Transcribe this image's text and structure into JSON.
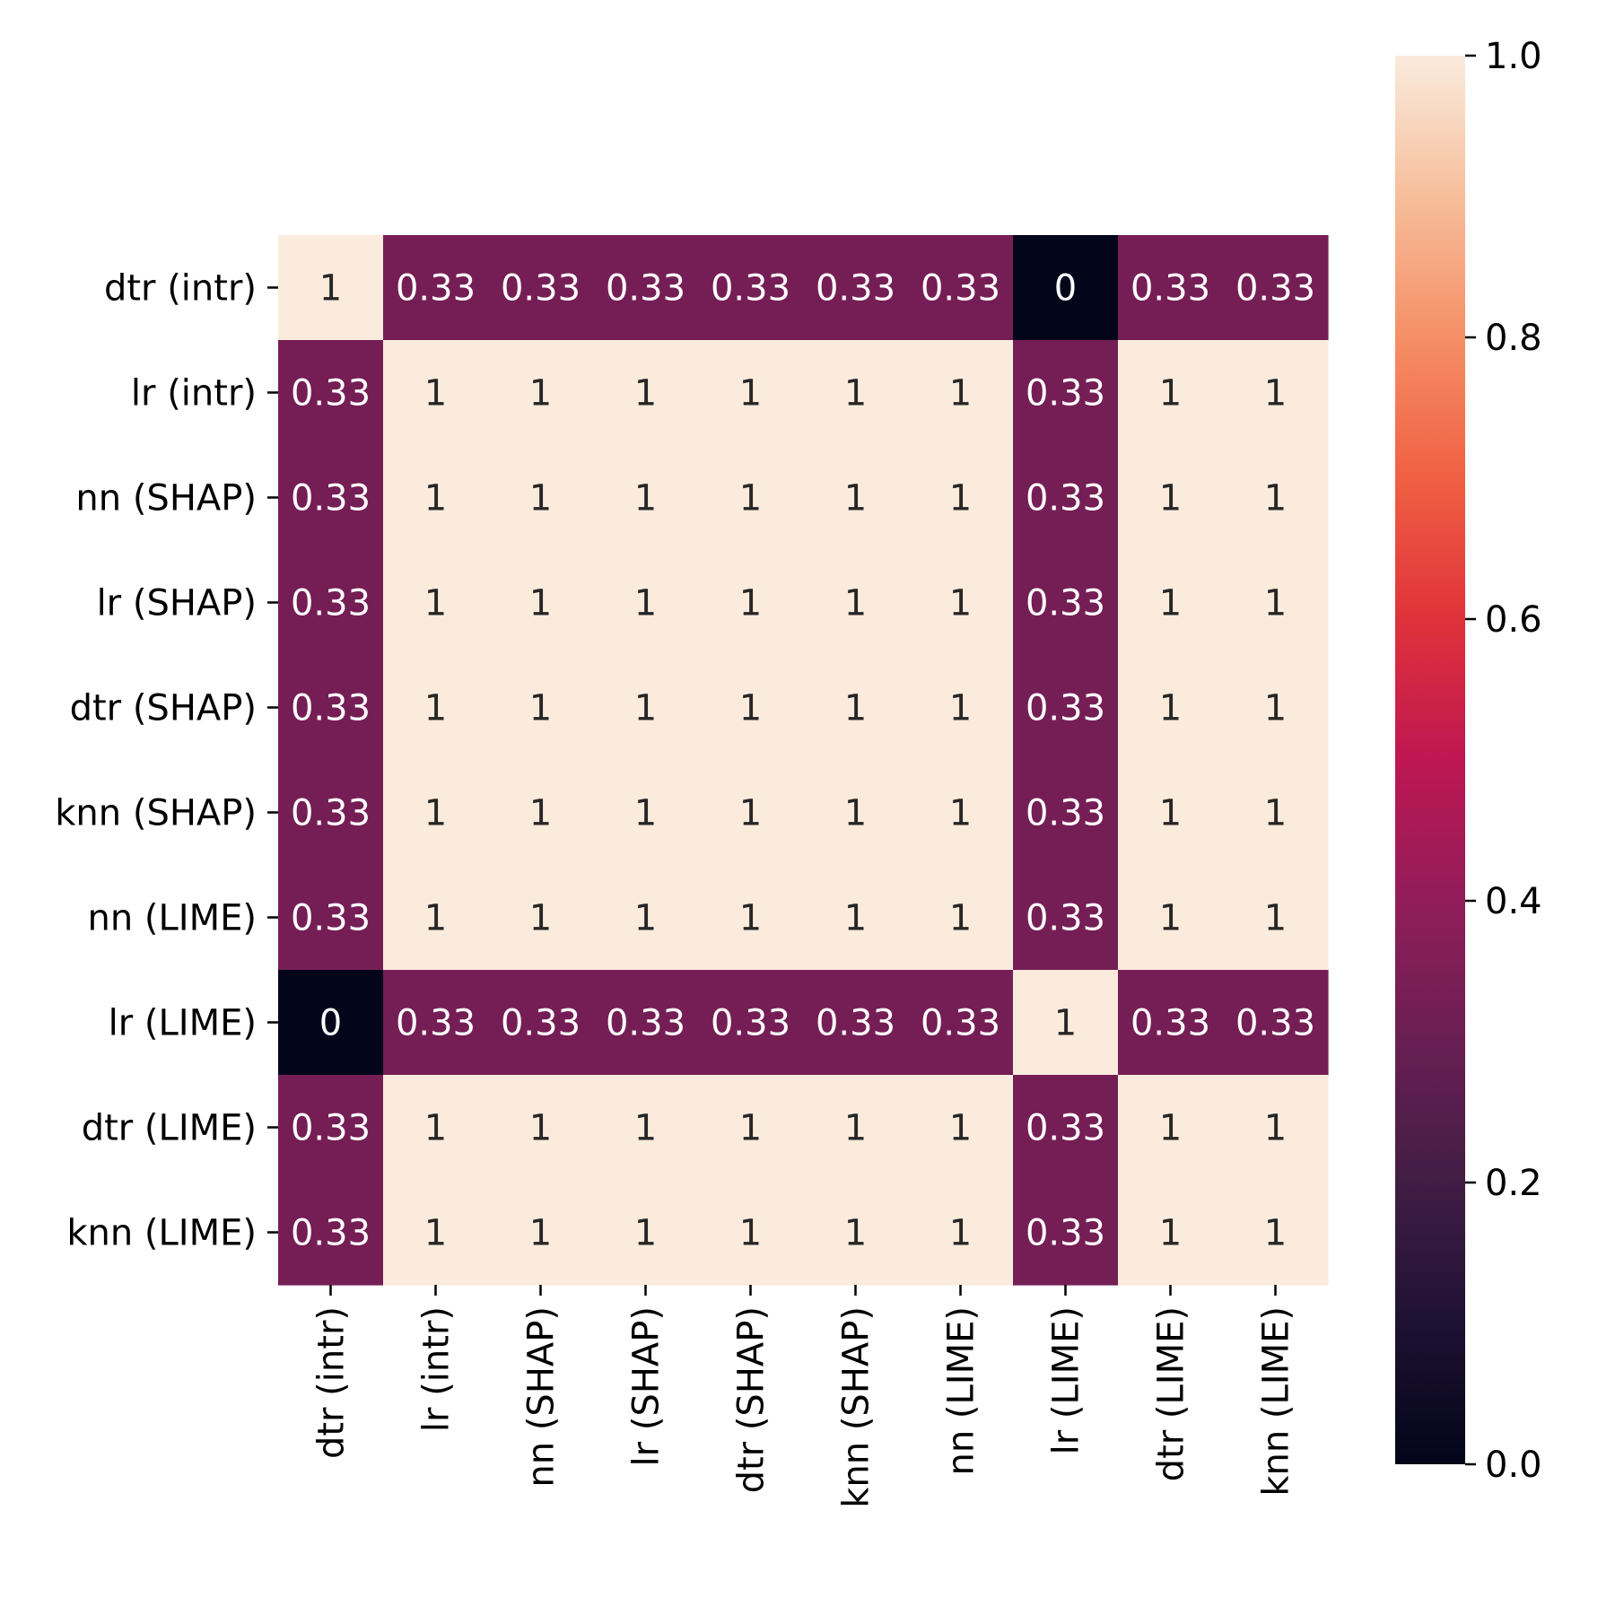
{
  "chart_data": {
    "type": "heatmap",
    "row_labels": [
      "dtr (intr)",
      "lr (intr)",
      "nn (SHAP)",
      "lr (SHAP)",
      "dtr (SHAP)",
      "knn (SHAP)",
      "nn (LIME)",
      "lr (LIME)",
      "dtr (LIME)",
      "knn (LIME)"
    ],
    "col_labels": [
      "dtr (intr)",
      "lr (intr)",
      "nn (SHAP)",
      "lr (SHAP)",
      "dtr (SHAP)",
      "knn (SHAP)",
      "nn (LIME)",
      "lr (LIME)",
      "dtr (LIME)",
      "knn (LIME)"
    ],
    "values": [
      [
        1,
        0.33,
        0.33,
        0.33,
        0.33,
        0.33,
        0.33,
        0,
        0.33,
        0.33
      ],
      [
        0.33,
        1,
        1,
        1,
        1,
        1,
        1,
        0.33,
        1,
        1
      ],
      [
        0.33,
        1,
        1,
        1,
        1,
        1,
        1,
        0.33,
        1,
        1
      ],
      [
        0.33,
        1,
        1,
        1,
        1,
        1,
        1,
        0.33,
        1,
        1
      ],
      [
        0.33,
        1,
        1,
        1,
        1,
        1,
        1,
        0.33,
        1,
        1
      ],
      [
        0.33,
        1,
        1,
        1,
        1,
        1,
        1,
        0.33,
        1,
        1
      ],
      [
        0.33,
        1,
        1,
        1,
        1,
        1,
        1,
        0.33,
        1,
        1
      ],
      [
        0,
        0.33,
        0.33,
        0.33,
        0.33,
        0.33,
        0.33,
        1,
        0.33,
        0.33
      ],
      [
        0.33,
        1,
        1,
        1,
        1,
        1,
        1,
        0.33,
        1,
        1
      ],
      [
        0.33,
        1,
        1,
        1,
        1,
        1,
        1,
        0.33,
        1,
        1
      ]
    ],
    "annotations": [
      [
        "1",
        "0.33",
        "0.33",
        "0.33",
        "0.33",
        "0.33",
        "0.33",
        "0",
        "0.33",
        "0.33"
      ],
      [
        "0.33",
        "1",
        "1",
        "1",
        "1",
        "1",
        "1",
        "0.33",
        "1",
        "1"
      ],
      [
        "0.33",
        "1",
        "1",
        "1",
        "1",
        "1",
        "1",
        "0.33",
        "1",
        "1"
      ],
      [
        "0.33",
        "1",
        "1",
        "1",
        "1",
        "1",
        "1",
        "0.33",
        "1",
        "1"
      ],
      [
        "0.33",
        "1",
        "1",
        "1",
        "1",
        "1",
        "1",
        "0.33",
        "1",
        "1"
      ],
      [
        "0.33",
        "1",
        "1",
        "1",
        "1",
        "1",
        "1",
        "0.33",
        "1",
        "1"
      ],
      [
        "0.33",
        "1",
        "1",
        "1",
        "1",
        "1",
        "1",
        "0.33",
        "1",
        "1"
      ],
      [
        "0",
        "0.33",
        "0.33",
        "0.33",
        "0.33",
        "0.33",
        "0.33",
        "1",
        "0.33",
        "0.33"
      ],
      [
        "0.33",
        "1",
        "1",
        "1",
        "1",
        "1",
        "1",
        "0.33",
        "1",
        "1"
      ],
      [
        "0.33",
        "1",
        "1",
        "1",
        "1",
        "1",
        "1",
        "0.33",
        "1",
        "1"
      ]
    ],
    "colormap": "rocket",
    "color_range": [
      0,
      1
    ],
    "colorbar": {
      "position": "right",
      "ticks": [
        0.0,
        0.2,
        0.4,
        0.6,
        0.8,
        1.0
      ],
      "tick_labels": [
        "0.0",
        "0.2",
        "0.4",
        "0.6",
        "0.8",
        "1.0"
      ]
    },
    "title": "",
    "xlabel": "",
    "ylabel": "",
    "grid": false
  }
}
